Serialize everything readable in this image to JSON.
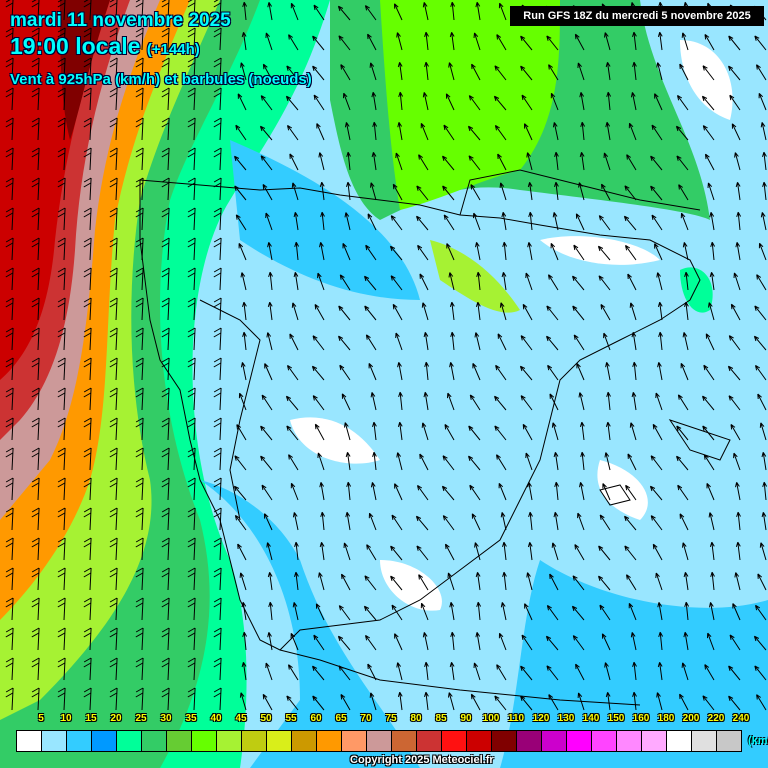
{
  "header": {
    "date": "mardi 11 novembre 2025",
    "time": "19:00 locale",
    "lead": "(+144h)",
    "parameter": "Vent à 925hPa (km/h) et barbules (noeuds)",
    "run": "Run GFS 18Z du mercredi 5 novembre 2025"
  },
  "legend": {
    "unit": "(km/h)",
    "labels": [
      "5",
      "10",
      "15",
      "20",
      "25",
      "30",
      "35",
      "40",
      "45",
      "50",
      "55",
      "60",
      "65",
      "70",
      "75",
      "80",
      "85",
      "90",
      "100",
      "110",
      "120",
      "130",
      "140",
      "150",
      "160",
      "180",
      "200",
      "220",
      "240"
    ],
    "colors": [
      "#ffffff",
      "#99e6ff",
      "#33ccff",
      "#0099ff",
      "#00ff99",
      "#33cc66",
      "#66cc33",
      "#66ff00",
      "#a6f233",
      "#bfcc11",
      "#d9ee1a",
      "#cc9900",
      "#ff9900",
      "#ff9966",
      "#cc9999",
      "#cc6633",
      "#cc3333",
      "#ff1111",
      "#cc0000",
      "#800000",
      "#990077",
      "#cc00cc",
      "#ff00ff",
      "#ff44ff",
      "#ff88ff",
      "#ffaaff",
      "#ffffff",
      "#e0e0e0",
      "#c8c8c8"
    ]
  },
  "map": {
    "region": "Iberian Peninsula",
    "dominant_wind_direction": "south to southeasterly"
  },
  "copyright": "Copyright 2025 Meteociel.fr"
}
